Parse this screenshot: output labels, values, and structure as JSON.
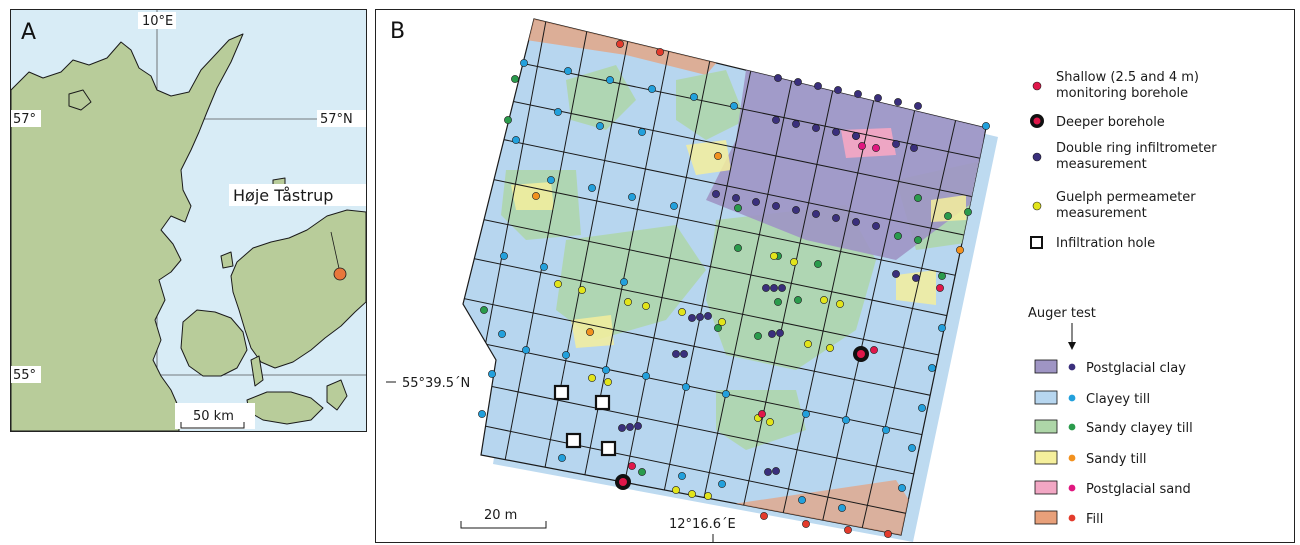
{
  "panel_a": {
    "letter": "A",
    "lon_label": "10°E",
    "lat_left_top": "57°",
    "lat_right_top": "57°N",
    "lat_left_bottom": "55°",
    "site_label": "Høje Tåstrup",
    "scale_label": "50 km",
    "colors": {
      "sea": "#d8ecf6",
      "land": "#b8cc9a",
      "site": "#e8773c"
    }
  },
  "panel_b": {
    "letter": "B",
    "lat_label": "55°39.5´N",
    "lon_label": "12°16.6´E",
    "scale_label": "20 m",
    "legend": {
      "symbols": [
        {
          "label": "Shallow (2.5 and 4 m) monitoring borehole",
          "line1": "Shallow (2.5 and 4 m)",
          "line2": "monitoring borehole",
          "icon": "small-red-dot",
          "color": "#e0174a"
        },
        {
          "label": "Deeper borehole",
          "line1": "Deeper borehole",
          "line2": "",
          "icon": "ringed-red-dot",
          "color": "#e0174a"
        },
        {
          "label": "Double ring infiltrometer measurement",
          "line1": "Double ring infiltrometer",
          "line2": "measurement",
          "icon": "purple-dot",
          "color": "#3a2f7c"
        },
        {
          "label": "Guelph permeameter measurement",
          "line1": "Guelph permeameter",
          "line2": "measurement",
          "icon": "yellow-dot",
          "color": "#e2e41a"
        },
        {
          "label": "Infiltration hole",
          "line1": "Infiltration hole",
          "line2": "",
          "icon": "open-square",
          "color": "#111111"
        }
      ],
      "auger_title": "Auger test",
      "soil_classes": [
        {
          "label": "Postglacial clay",
          "fill": "#9f95c4",
          "dot": "#3a2f7c"
        },
        {
          "label": "Clayey till",
          "fill": "#b7d6ef",
          "dot": "#22a0dc"
        },
        {
          "label": "Sandy clayey till",
          "fill": "#aed6a8",
          "dot": "#2a9b4c"
        },
        {
          "label": "Sandy till",
          "fill": "#f5ef9c",
          "dot": "#f2911f"
        },
        {
          "label": "Postglacial sand",
          "fill": "#f2a7c4",
          "dot": "#e0177f"
        },
        {
          "label": "Fill",
          "fill": "#e8a07a",
          "dot": "#e33b2c"
        }
      ]
    }
  }
}
